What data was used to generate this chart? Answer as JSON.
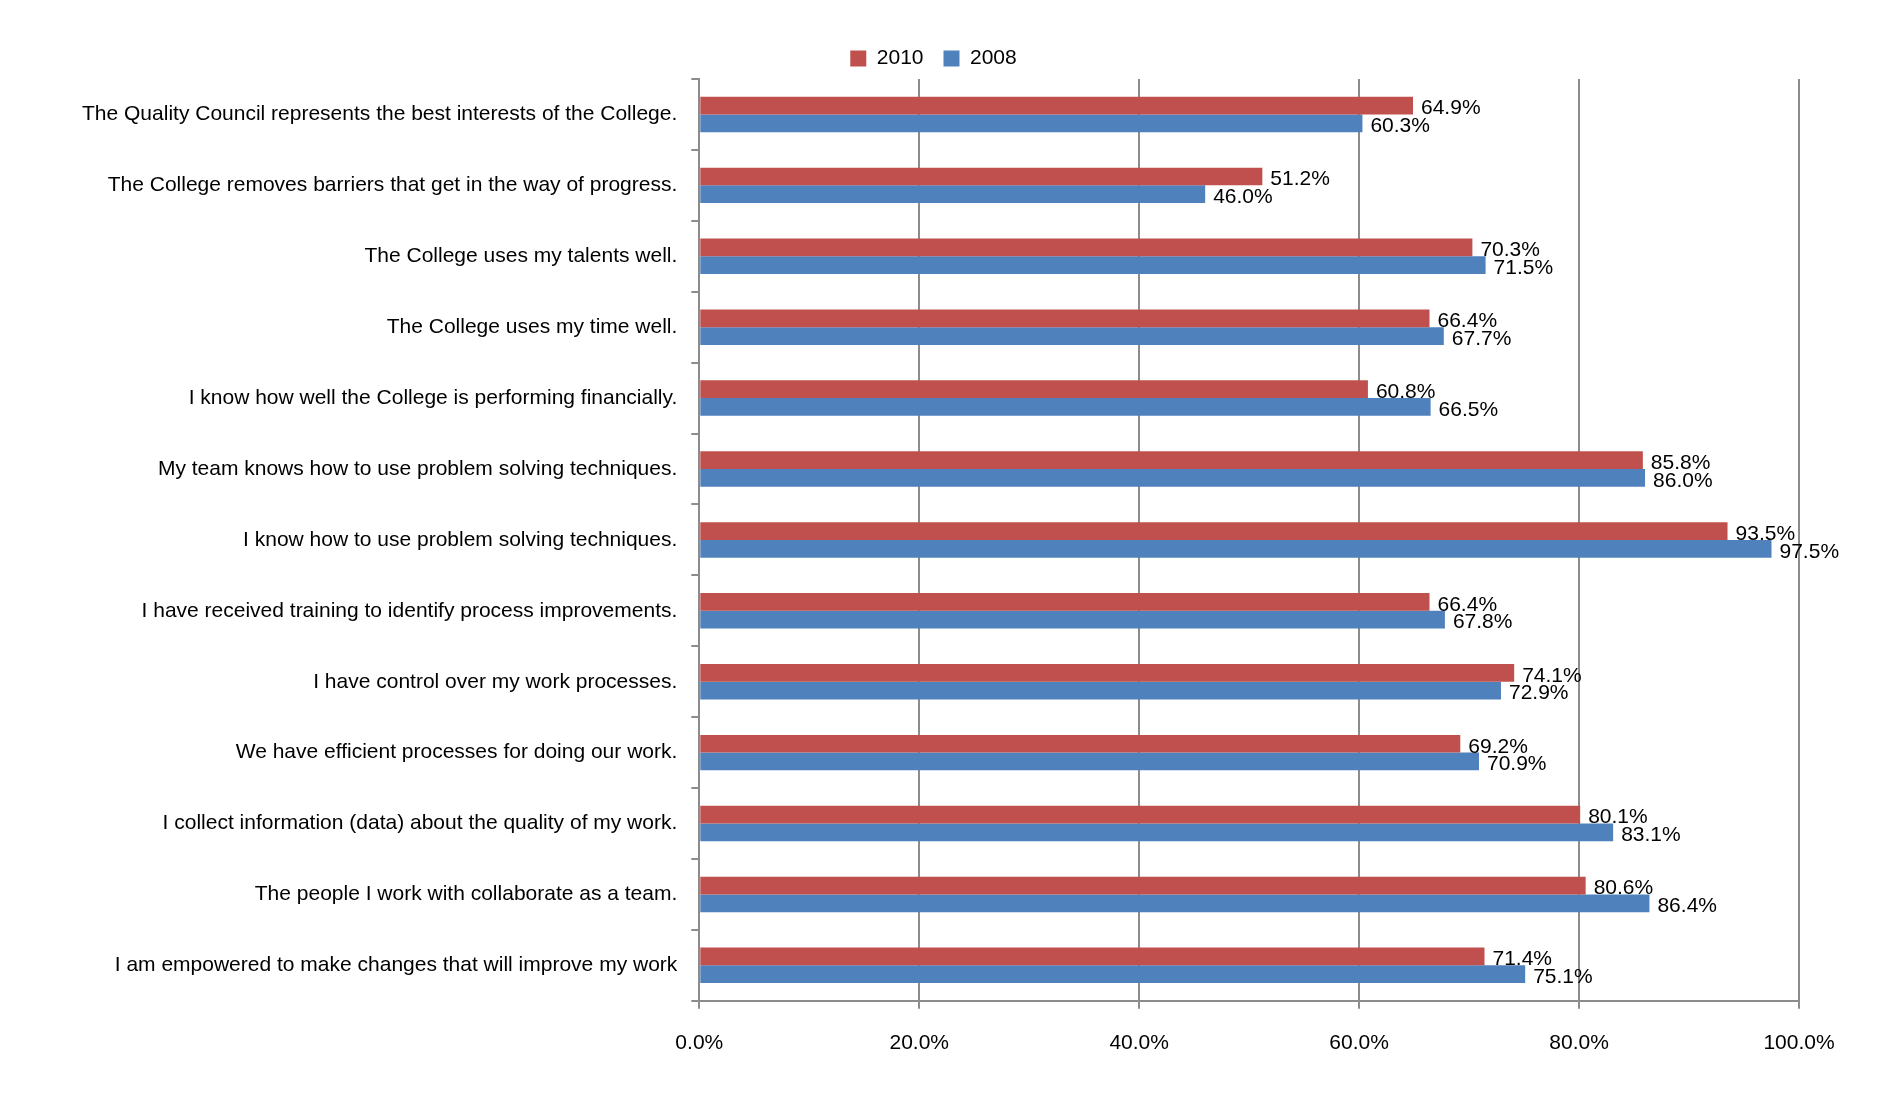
{
  "chart_data": {
    "type": "bar",
    "orientation": "horizontal",
    "categories": [
      "The Quality Council represents the best interests of the College.",
      "The College removes barriers that get in the way of progress.",
      "The College uses my talents well.",
      "The College uses my time well.",
      "I know how well the College is performing financially.",
      "My team knows how to use problem solving techniques.",
      "I know how to use problem solving techniques.",
      "I have received training to identify process improvements.",
      "I have control over my work processes.",
      "We have efficient processes for doing our work.",
      "I collect information (data) about the quality of my work.",
      "The people I work with collaborate as a team.",
      "I am empowered to make changes that will improve my work"
    ],
    "series": [
      {
        "name": "2010",
        "color": "#c0504d",
        "values": [
          64.9,
          51.2,
          70.3,
          66.4,
          60.8,
          85.8,
          93.5,
          66.4,
          74.1,
          69.2,
          80.1,
          80.6,
          71.4
        ],
        "value_labels": [
          "64.9%",
          "51.2%",
          "70.3%",
          "66.4%",
          "60.8%",
          "85.8%",
          "93.5%",
          "66.4%",
          "74.1%",
          "69.2%",
          "80.1%",
          "80.6%",
          "71.4%"
        ]
      },
      {
        "name": "2008",
        "color": "#4f81bd",
        "values": [
          60.3,
          46.0,
          71.5,
          67.7,
          66.5,
          86.0,
          97.5,
          67.8,
          72.9,
          70.9,
          83.1,
          86.4,
          75.1
        ],
        "value_labels": [
          "60.3%",
          "46.0%",
          "71.5%",
          "67.7%",
          "66.5%",
          "86.0%",
          "97.5%",
          "67.8%",
          "72.9%",
          "70.9%",
          "83.1%",
          "86.4%",
          "75.1%"
        ]
      }
    ],
    "xlim": [
      0,
      100
    ],
    "xticks": [
      {
        "value": 0,
        "label": "0.0%"
      },
      {
        "value": 20,
        "label": "20.0%"
      },
      {
        "value": 40,
        "label": "40.0%"
      },
      {
        "value": 60,
        "label": "60.0%"
      },
      {
        "value": 80,
        "label": "80.0%"
      },
      {
        "value": 100,
        "label": "100.0%"
      }
    ],
    "grid": "x",
    "legend": "top"
  }
}
